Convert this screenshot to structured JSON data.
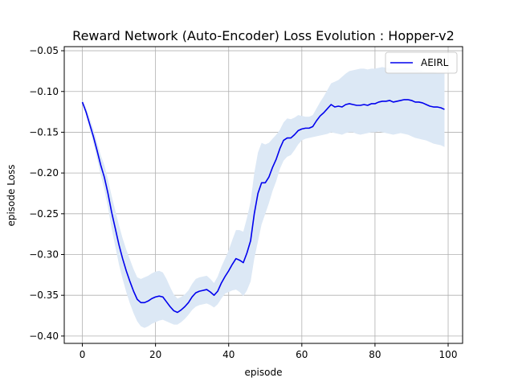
{
  "chart_data": {
    "type": "line",
    "title": "Reward Network (Auto-Encoder) Loss Evolution : Hopper-v2",
    "xlabel": "episode",
    "ylabel": "episode Loss",
    "xlim": [
      -4.95,
      103.95
    ],
    "ylim": [
      -0.409,
      -0.045
    ],
    "x_ticks": [
      0,
      20,
      40,
      60,
      80,
      100
    ],
    "x_tick_labels": [
      "0",
      "20",
      "40",
      "60",
      "80",
      "100"
    ],
    "y_ticks": [
      -0.05,
      -0.1,
      -0.15,
      -0.2,
      -0.25,
      -0.3,
      -0.35,
      -0.4
    ],
    "y_tick_labels": [
      "−0.05",
      "−0.10",
      "−0.15",
      "−0.20",
      "−0.25",
      "−0.30",
      "−0.35",
      "−0.40"
    ],
    "grid": true,
    "legend_position": "top-right",
    "colors": {
      "line": "#0000ee",
      "band": "#dce8f5"
    },
    "series": [
      {
        "name": "AEIRL",
        "x": [
          0,
          1,
          2,
          3,
          4,
          5,
          6,
          7,
          8,
          9,
          10,
          11,
          12,
          13,
          14,
          15,
          16,
          17,
          18,
          19,
          20,
          21,
          22,
          23,
          24,
          25,
          26,
          27,
          28,
          29,
          30,
          31,
          32,
          33,
          34,
          35,
          36,
          37,
          38,
          39,
          40,
          41,
          42,
          43,
          44,
          45,
          46,
          47,
          48,
          49,
          50,
          51,
          52,
          53,
          54,
          55,
          56,
          57,
          58,
          59,
          60,
          61,
          62,
          63,
          64,
          65,
          66,
          67,
          68,
          69,
          70,
          71,
          72,
          73,
          74,
          75,
          76,
          77,
          78,
          79,
          80,
          81,
          82,
          83,
          84,
          85,
          86,
          87,
          88,
          89,
          90,
          91,
          92,
          93,
          94,
          95,
          96,
          97,
          98,
          99
        ],
        "values": [
          -0.113,
          -0.125,
          -0.14,
          -0.155,
          -0.172,
          -0.19,
          -0.205,
          -0.225,
          -0.248,
          -0.268,
          -0.288,
          -0.305,
          -0.32,
          -0.333,
          -0.345,
          -0.355,
          -0.359,
          -0.359,
          -0.357,
          -0.354,
          -0.352,
          -0.351,
          -0.352,
          -0.358,
          -0.364,
          -0.369,
          -0.371,
          -0.368,
          -0.364,
          -0.359,
          -0.352,
          -0.347,
          -0.345,
          -0.344,
          -0.343,
          -0.346,
          -0.35,
          -0.345,
          -0.335,
          -0.327,
          -0.32,
          -0.312,
          -0.305,
          -0.307,
          -0.31,
          -0.298,
          -0.283,
          -0.25,
          -0.225,
          -0.212,
          -0.212,
          -0.205,
          -0.193,
          -0.183,
          -0.17,
          -0.16,
          -0.157,
          -0.157,
          -0.153,
          -0.148,
          -0.146,
          -0.145,
          -0.145,
          -0.143,
          -0.136,
          -0.13,
          -0.126,
          -0.121,
          -0.116,
          -0.119,
          -0.118,
          -0.119,
          -0.116,
          -0.115,
          -0.116,
          -0.117,
          -0.117,
          -0.116,
          -0.117,
          -0.115,
          -0.115,
          -0.113,
          -0.112,
          -0.112,
          -0.111,
          -0.113,
          -0.112,
          -0.111,
          -0.11,
          -0.11,
          -0.111,
          -0.113,
          -0.113,
          -0.114,
          -0.116,
          -0.118,
          -0.119,
          -0.119,
          -0.12,
          -0.122
        ],
        "lower": [
          -0.115,
          -0.128,
          -0.146,
          -0.163,
          -0.182,
          -0.202,
          -0.22,
          -0.242,
          -0.268,
          -0.29,
          -0.312,
          -0.33,
          -0.346,
          -0.36,
          -0.372,
          -0.382,
          -0.388,
          -0.39,
          -0.388,
          -0.385,
          -0.383,
          -0.381,
          -0.38,
          -0.382,
          -0.384,
          -0.386,
          -0.386,
          -0.383,
          -0.379,
          -0.374,
          -0.368,
          -0.364,
          -0.362,
          -0.361,
          -0.36,
          -0.362,
          -0.365,
          -0.361,
          -0.354,
          -0.348,
          -0.346,
          -0.344,
          -0.343,
          -0.346,
          -0.351,
          -0.344,
          -0.333,
          -0.305,
          -0.284,
          -0.263,
          -0.25,
          -0.237,
          -0.222,
          -0.21,
          -0.195,
          -0.185,
          -0.18,
          -0.178,
          -0.172,
          -0.165,
          -0.16,
          -0.158,
          -0.157,
          -0.156,
          -0.155,
          -0.154,
          -0.153,
          -0.152,
          -0.15,
          -0.151,
          -0.152,
          -0.153,
          -0.151,
          -0.15,
          -0.15,
          -0.152,
          -0.153,
          -0.152,
          -0.151,
          -0.15,
          -0.15,
          -0.149,
          -0.15,
          -0.151,
          -0.152,
          -0.153,
          -0.152,
          -0.151,
          -0.152,
          -0.153,
          -0.155,
          -0.157,
          -0.158,
          -0.159,
          -0.16,
          -0.162,
          -0.164,
          -0.165,
          -0.166,
          -0.168
        ],
        "upper": [
          -0.111,
          -0.12,
          -0.133,
          -0.146,
          -0.162,
          -0.178,
          -0.19,
          -0.208,
          -0.228,
          -0.246,
          -0.264,
          -0.28,
          -0.294,
          -0.306,
          -0.318,
          -0.328,
          -0.33,
          -0.328,
          -0.326,
          -0.323,
          -0.321,
          -0.32,
          -0.322,
          -0.33,
          -0.34,
          -0.349,
          -0.354,
          -0.352,
          -0.349,
          -0.344,
          -0.336,
          -0.33,
          -0.328,
          -0.327,
          -0.326,
          -0.33,
          -0.335,
          -0.327,
          -0.315,
          -0.305,
          -0.295,
          -0.282,
          -0.27,
          -0.27,
          -0.272,
          -0.255,
          -0.235,
          -0.2,
          -0.175,
          -0.163,
          -0.165,
          -0.163,
          -0.158,
          -0.153,
          -0.147,
          -0.138,
          -0.133,
          -0.134,
          -0.132,
          -0.129,
          -0.13,
          -0.131,
          -0.131,
          -0.129,
          -0.121,
          -0.113,
          -0.106,
          -0.098,
          -0.09,
          -0.088,
          -0.086,
          -0.082,
          -0.078,
          -0.075,
          -0.074,
          -0.073,
          -0.072,
          -0.072,
          -0.073,
          -0.072,
          -0.072,
          -0.071,
          -0.07,
          -0.071,
          -0.072,
          -0.073,
          -0.073,
          -0.072,
          -0.071,
          -0.071,
          -0.072,
          -0.073,
          -0.074,
          -0.075,
          -0.076,
          -0.076,
          -0.076,
          -0.077,
          -0.077,
          -0.078
        ]
      }
    ]
  }
}
